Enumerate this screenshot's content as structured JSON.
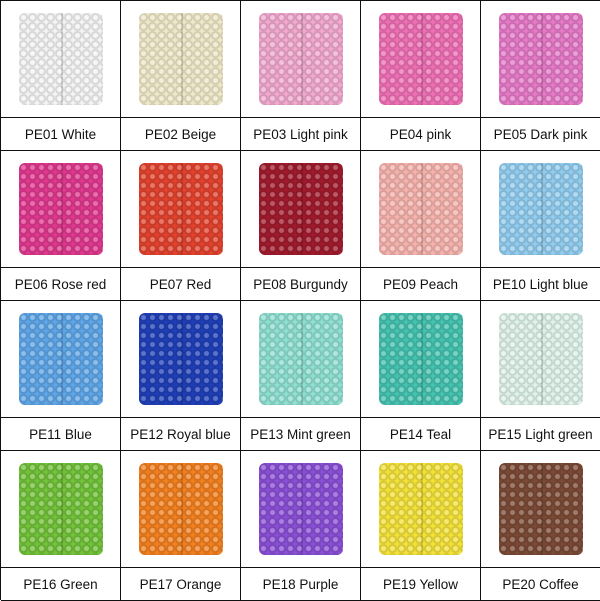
{
  "items": [
    {
      "label": "PE01 White",
      "color": "#f4f4f4"
    },
    {
      "label": "PE02 Beige",
      "color": "#efe8c8"
    },
    {
      "label": "PE03 Light pink",
      "color": "#f2a9cf"
    },
    {
      "label": "PE04 pink",
      "color": "#ef6fb5"
    },
    {
      "label": "PE05 Dark pink",
      "color": "#e67ac8"
    },
    {
      "label": "PE06 Rose red",
      "color": "#e0388e"
    },
    {
      "label": "PE07 Red",
      "color": "#e2422e"
    },
    {
      "label": "PE08 Burgundy",
      "color": "#a01a2c"
    },
    {
      "label": "PE09 Peach",
      "color": "#f6b3ad"
    },
    {
      "label": "PE10 Light blue",
      "color": "#92cdef"
    },
    {
      "label": "PE11 Blue",
      "color": "#5fa6e8"
    },
    {
      "label": "PE12 Royal blue",
      "color": "#1f3fb8"
    },
    {
      "label": "PE13 Mint green",
      "color": "#8fe0d2"
    },
    {
      "label": "PE14 Teal",
      "color": "#45c3b0"
    },
    {
      "label": "PE15 Light green",
      "color": "#dff3ea"
    },
    {
      "label": "PE16 Green",
      "color": "#72c23a"
    },
    {
      "label": "PE17 Orange",
      "color": "#f3801f"
    },
    {
      "label": "PE18 Purple",
      "color": "#8a4fd6"
    },
    {
      "label": "PE19 Yellow",
      "color": "#f4e23a"
    },
    {
      "label": "PE20 Coffee",
      "color": "#7b4a35"
    }
  ]
}
